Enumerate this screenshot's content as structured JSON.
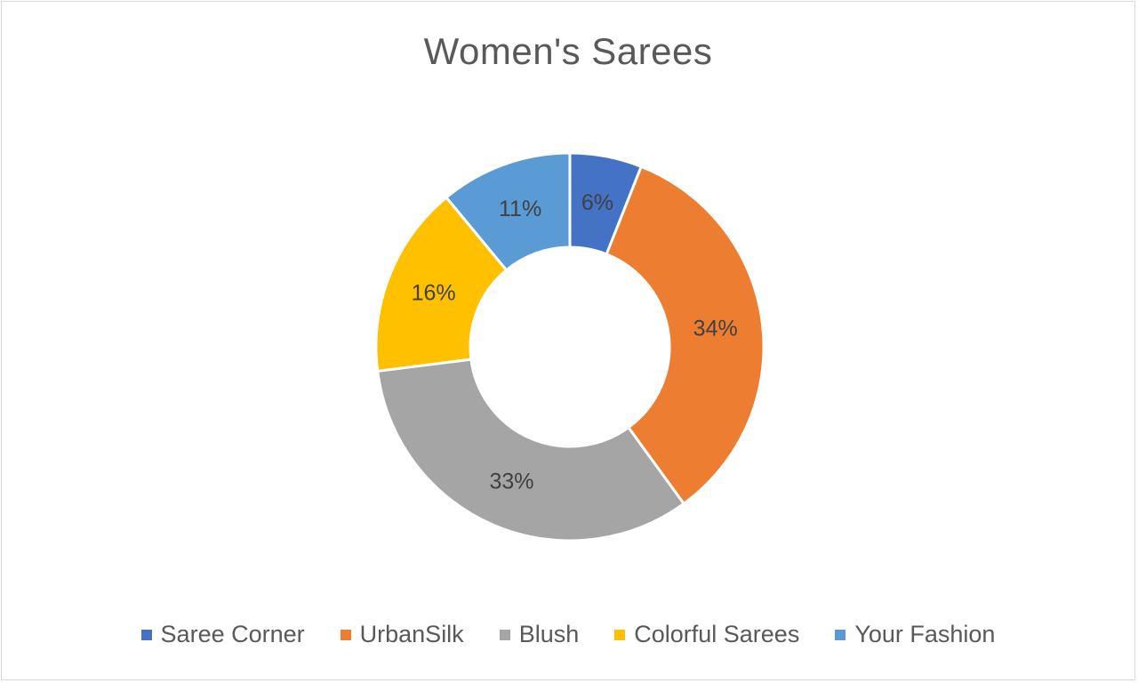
{
  "chart_data": {
    "type": "pie",
    "variant": "donut",
    "title": "Women's Sarees",
    "categories": [
      "Saree Corner",
      "UrbanSilk",
      "Blush",
      "Colorful Sarees",
      "Your Fashion"
    ],
    "values": [
      6,
      34,
      33,
      16,
      11
    ],
    "data_labels": [
      "6%",
      "34%",
      "33%",
      "16%",
      "11%"
    ],
    "colors": [
      "#4472c4",
      "#ed7d31",
      "#a5a5a5",
      "#ffc000",
      "#5b9bd5"
    ],
    "legend_position": "bottom",
    "grid": false
  }
}
